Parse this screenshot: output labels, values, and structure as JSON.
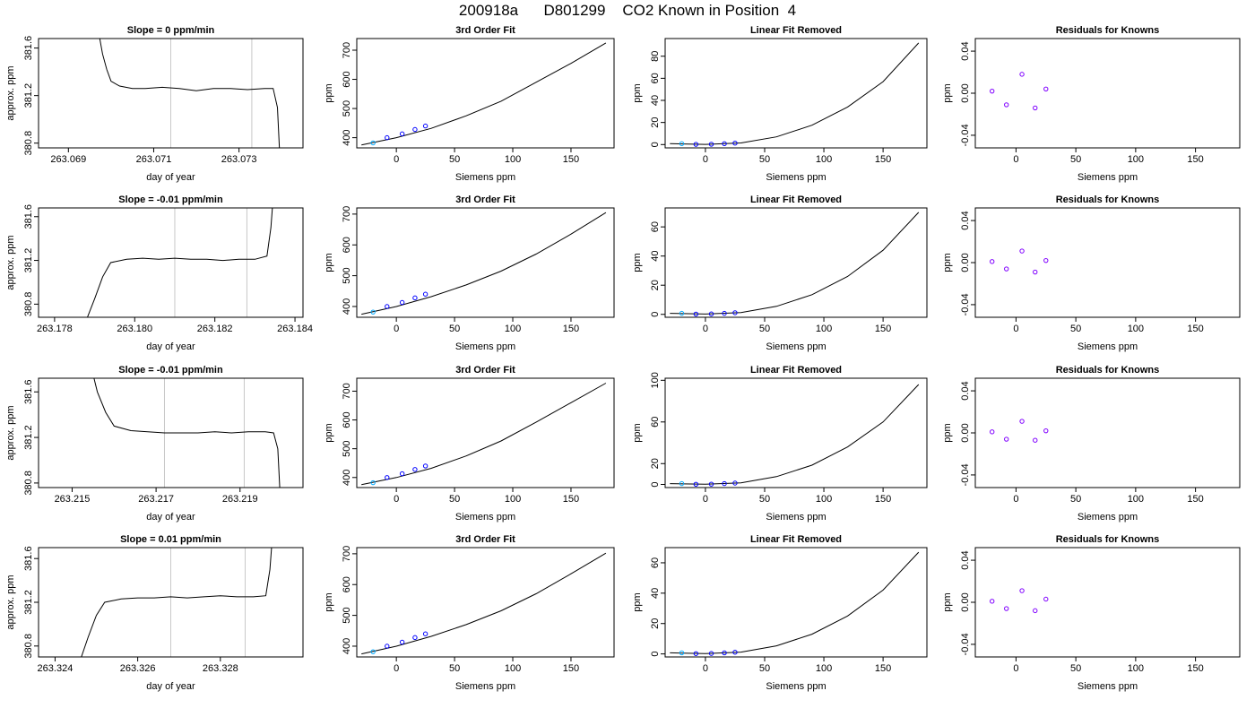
{
  "figure_title": "200918a      D801299    CO2 Known in Position  4",
  "colors": {
    "line": "#000000",
    "known_marker": "#0000ff",
    "first_marker": "#00aaff",
    "resid_marker": "#8000ff",
    "gridline": "#c8c8c8",
    "trace_highlight": "#ff0000"
  },
  "chart_data": [
    {
      "type": "line",
      "title": "Slope =  0  ppm/min",
      "xlabel": "day of year",
      "ylabel": "approx. ppm",
      "xlim": [
        263.0683,
        263.0745
      ],
      "ylim": [
        380.76,
        381.68
      ],
      "xticks": [
        263.069,
        263.071,
        263.073
      ],
      "xtick_labels": [
        "263.069",
        "263.071",
        "263.073"
      ],
      "yticks": [
        380.8,
        381.2,
        381.6
      ],
      "ytick_labels": [
        "380.8",
        "381.2",
        "381.6"
      ],
      "vlines": [
        263.0714,
        263.0733
      ],
      "x": [
        263.0697,
        263.0698,
        263.0699,
        263.07,
        263.0702,
        263.0705,
        263.0708,
        263.0712,
        263.0716,
        263.072,
        263.0724,
        263.0728,
        263.0732,
        263.0736,
        263.0738,
        263.0739,
        263.07395
      ],
      "y": [
        381.75,
        381.55,
        381.42,
        381.32,
        381.28,
        381.26,
        381.26,
        381.27,
        381.26,
        381.24,
        381.26,
        381.26,
        381.25,
        381.26,
        381.26,
        381.1,
        380.74
      ]
    },
    {
      "type": "line",
      "title": "3rd Order Fit",
      "xlabel": "Siemens ppm",
      "ylabel": "ppm",
      "xlim": [
        -34,
        187
      ],
      "ylim": [
        365,
        740
      ],
      "xticks": [
        0,
        50,
        100,
        150
      ],
      "xtick_labels": [
        "0",
        "50",
        "100",
        "150"
      ],
      "yticks": [
        400,
        500,
        600,
        700
      ],
      "ytick_labels": [
        "400",
        "500",
        "600",
        "700"
      ],
      "x": [
        -30,
        0,
        30,
        60,
        90,
        120,
        150,
        180
      ],
      "y": [
        375,
        400,
        432,
        475,
        525,
        590,
        655,
        725
      ],
      "points_x": [
        -20,
        -8,
        5,
        16,
        25
      ],
      "points_y": [
        382,
        400,
        413,
        428,
        440
      ]
    },
    {
      "type": "line",
      "title": "Linear Fit Removed",
      "xlabel": "Siemens ppm",
      "ylabel": "ppm",
      "xlim": [
        -34,
        187
      ],
      "ylim": [
        -3,
        96
      ],
      "xticks": [
        0,
        50,
        100,
        150
      ],
      "xtick_labels": [
        "0",
        "50",
        "100",
        "150"
      ],
      "yticks": [
        0,
        20,
        40,
        60,
        80
      ],
      "ytick_labels": [
        "0",
        "20",
        "40",
        "60",
        "80"
      ],
      "x": [
        -30,
        0,
        30,
        60,
        90,
        120,
        150,
        180
      ],
      "y": [
        0.8,
        0.2,
        1.5,
        7,
        17.5,
        34,
        57,
        92
      ],
      "points_x": [
        -20,
        -8,
        5,
        16,
        25
      ],
      "points_y": [
        0.8,
        0.2,
        0.3,
        0.8,
        1.3
      ]
    },
    {
      "type": "scatter",
      "title": "Residuals for Knowns",
      "xlabel": "Siemens ppm",
      "ylabel": "ppm",
      "xlim": [
        -34,
        187
      ],
      "ylim": [
        -0.052,
        0.052
      ],
      "xticks": [
        0,
        50,
        100,
        150
      ],
      "xtick_labels": [
        "0",
        "50",
        "100",
        "150"
      ],
      "yticks": [
        -0.04,
        0,
        0.04
      ],
      "ytick_labels": [
        "-0.04",
        "0.00",
        "0.04"
      ],
      "points_x": [
        -20,
        -8,
        5,
        16,
        25
      ],
      "points_y": [
        0.002,
        -0.011,
        0.018,
        -0.014,
        0.004
      ]
    },
    {
      "type": "line",
      "title": "Slope =  -0.01  ppm/min",
      "xlabel": "day of year",
      "ylabel": "approx. ppm",
      "xlim": [
        263.1776,
        263.1842
      ],
      "ylim": [
        380.68,
        381.68
      ],
      "xticks": [
        263.178,
        263.18,
        263.182,
        263.184
      ],
      "xtick_labels": [
        "263.178",
        "263.180",
        "263.182",
        "263.184"
      ],
      "yticks": [
        380.8,
        381.2,
        381.6
      ],
      "ytick_labels": [
        "380.8",
        "381.2",
        "381.6"
      ],
      "vlines": [
        263.181,
        263.1828
      ],
      "x": [
        263.1788,
        263.179,
        263.1792,
        263.1794,
        263.1798,
        263.1802,
        263.1806,
        263.181,
        263.1814,
        263.1818,
        263.1822,
        263.1826,
        263.183,
        263.1833,
        263.1834,
        263.18345
      ],
      "y": [
        380.66,
        380.85,
        381.05,
        381.18,
        381.21,
        381.22,
        381.21,
        381.22,
        381.21,
        381.21,
        381.2,
        381.21,
        381.21,
        381.24,
        381.5,
        381.75
      ]
    },
    {
      "type": "line",
      "title": "3rd Order Fit",
      "xlabel": "Siemens ppm",
      "ylabel": "ppm",
      "xlim": [
        -34,
        187
      ],
      "ylim": [
        365,
        720
      ],
      "xticks": [
        0,
        50,
        100,
        150
      ],
      "xtick_labels": [
        "0",
        "50",
        "100",
        "150"
      ],
      "yticks": [
        400,
        500,
        600,
        700
      ],
      "ytick_labels": [
        "400",
        "500",
        "600",
        "700"
      ],
      "x": [
        -30,
        0,
        30,
        60,
        90,
        120,
        150,
        180
      ],
      "y": [
        375,
        400,
        432,
        470,
        515,
        570,
        635,
        705
      ],
      "points_x": [
        -20,
        -8,
        5,
        16,
        25
      ],
      "points_y": [
        382,
        400,
        413,
        428,
        440
      ]
    },
    {
      "type": "line",
      "title": "Linear Fit Removed",
      "xlabel": "Siemens ppm",
      "ylabel": "ppm",
      "xlim": [
        -34,
        187
      ],
      "ylim": [
        -2,
        73
      ],
      "xticks": [
        0,
        50,
        100,
        150
      ],
      "xtick_labels": [
        "0",
        "50",
        "100",
        "150"
      ],
      "yticks": [
        0,
        20,
        40,
        60
      ],
      "ytick_labels": [
        "0",
        "20",
        "40",
        "60"
      ],
      "x": [
        -30,
        0,
        30,
        60,
        90,
        120,
        150,
        180
      ],
      "y": [
        0.7,
        0.2,
        1.2,
        5.5,
        13.5,
        26,
        44,
        70
      ],
      "points_x": [
        -20,
        -8,
        5,
        16,
        25
      ],
      "points_y": [
        0.7,
        0.2,
        0.3,
        0.7,
        1.1
      ]
    },
    {
      "type": "scatter",
      "title": "Residuals for Knowns",
      "xlabel": "Siemens ppm",
      "ylabel": "ppm",
      "xlim": [
        -34,
        187
      ],
      "ylim": [
        -0.052,
        0.052
      ],
      "xticks": [
        0,
        50,
        100,
        150
      ],
      "xtick_labels": [
        "0",
        "50",
        "100",
        "150"
      ],
      "yticks": [
        -0.04,
        0,
        0.04
      ],
      "ytick_labels": [
        "-0.04",
        "0.00",
        "0.04"
      ],
      "points_x": [
        -20,
        -8,
        5,
        16,
        25
      ],
      "points_y": [
        0.001,
        -0.006,
        0.011,
        -0.009,
        0.002
      ]
    },
    {
      "type": "line",
      "title": "Slope =  -0.01  ppm/min",
      "xlabel": "day of year",
      "ylabel": "approx. ppm",
      "xlim": [
        263.2142,
        263.2205
      ],
      "ylim": [
        380.76,
        381.72
      ],
      "xticks": [
        263.215,
        263.217,
        263.219
      ],
      "xtick_labels": [
        "263.215",
        "263.217",
        "263.219"
      ],
      "yticks": [
        380.8,
        381.2,
        381.6
      ],
      "ytick_labels": [
        "380.8",
        "381.2",
        "381.6"
      ],
      "vlines": [
        263.2172,
        263.2191
      ],
      "x": [
        263.2155,
        263.2156,
        263.2158,
        263.216,
        263.2164,
        263.2168,
        263.2172,
        263.2176,
        263.218,
        263.2184,
        263.2188,
        263.2192,
        263.2196,
        263.2198,
        263.2199,
        263.21995
      ],
      "y": [
        381.75,
        381.6,
        381.42,
        381.3,
        381.26,
        381.25,
        381.24,
        381.24,
        381.24,
        381.25,
        381.24,
        381.25,
        381.25,
        381.24,
        381.1,
        380.74
      ]
    },
    {
      "type": "line",
      "title": "3rd Order Fit",
      "xlabel": "Siemens ppm",
      "ylabel": "ppm",
      "xlim": [
        -34,
        187
      ],
      "ylim": [
        365,
        745
      ],
      "xticks": [
        0,
        50,
        100,
        150
      ],
      "xtick_labels": [
        "0",
        "50",
        "100",
        "150"
      ],
      "yticks": [
        400,
        500,
        600,
        700
      ],
      "ytick_labels": [
        "400",
        "500",
        "600",
        "700"
      ],
      "x": [
        -30,
        0,
        30,
        60,
        90,
        120,
        150,
        180
      ],
      "y": [
        375,
        400,
        432,
        475,
        527,
        592,
        660,
        728
      ],
      "points_x": [
        -20,
        -8,
        5,
        16,
        25
      ],
      "points_y": [
        382,
        400,
        413,
        428,
        440
      ]
    },
    {
      "type": "line",
      "title": "Linear Fit Removed",
      "xlabel": "Siemens ppm",
      "ylabel": "ppm",
      "xlim": [
        -34,
        187
      ],
      "ylim": [
        -3,
        102
      ],
      "xticks": [
        0,
        50,
        100,
        150
      ],
      "xtick_labels": [
        "0",
        "50",
        "100",
        "150"
      ],
      "yticks": [
        0,
        20,
        60,
        100
      ],
      "ytick_labels": [
        "0",
        "20",
        "60",
        "100"
      ],
      "x": [
        -30,
        0,
        30,
        60,
        90,
        120,
        150,
        180
      ],
      "y": [
        0.8,
        0.2,
        1.5,
        7.5,
        18.5,
        36,
        60,
        96
      ],
      "points_x": [
        -20,
        -8,
        5,
        16,
        25
      ],
      "points_y": [
        0.8,
        0.2,
        0.3,
        0.8,
        1.3
      ]
    },
    {
      "type": "scatter",
      "title": "Residuals for Knowns",
      "xlabel": "Siemens ppm",
      "ylabel": "ppm",
      "xlim": [
        -34,
        187
      ],
      "ylim": [
        -0.052,
        0.052
      ],
      "xticks": [
        0,
        50,
        100,
        150
      ],
      "xtick_labels": [
        "0",
        "50",
        "100",
        "150"
      ],
      "yticks": [
        -0.04,
        0,
        0.04
      ],
      "ytick_labels": [
        "-0.04",
        "0.00",
        "0.04"
      ],
      "points_x": [
        -20,
        -8,
        5,
        16,
        25
      ],
      "points_y": [
        0.001,
        -0.006,
        0.011,
        -0.007,
        0.002
      ]
    },
    {
      "type": "line",
      "title": "Slope =  0.01  ppm/min",
      "xlabel": "day of year",
      "ylabel": "approx. ppm",
      "xlim": [
        263.3236,
        263.33
      ],
      "ylim": [
        380.7,
        381.7
      ],
      "xticks": [
        263.324,
        263.326,
        263.328
      ],
      "xtick_labels": [
        "263.324",
        "263.326",
        "263.328"
      ],
      "yticks": [
        380.8,
        381.2,
        381.6
      ],
      "ytick_labels": [
        "380.8",
        "381.2",
        "381.6"
      ],
      "vlines": [
        263.3268,
        263.3286
      ],
      "x": [
        263.3246,
        263.3248,
        263.325,
        263.3252,
        263.3256,
        263.326,
        263.3264,
        263.3268,
        263.3272,
        263.3276,
        263.328,
        263.3284,
        263.3288,
        263.3291,
        263.3292,
        263.32925
      ],
      "y": [
        380.66,
        380.88,
        381.08,
        381.2,
        381.23,
        381.24,
        381.24,
        381.25,
        381.24,
        381.25,
        381.26,
        381.25,
        381.25,
        381.26,
        381.5,
        381.75
      ]
    },
    {
      "type": "line",
      "title": "3rd Order Fit",
      "xlabel": "Siemens ppm",
      "ylabel": "ppm",
      "xlim": [
        -34,
        187
      ],
      "ylim": [
        365,
        720
      ],
      "xticks": [
        0,
        50,
        100,
        150
      ],
      "xtick_labels": [
        "0",
        "50",
        "100",
        "150"
      ],
      "yticks": [
        400,
        500,
        600,
        700
      ],
      "ytick_labels": [
        "400",
        "500",
        "600",
        "700"
      ],
      "x": [
        -30,
        0,
        30,
        60,
        90,
        120,
        150,
        180
      ],
      "y": [
        375,
        400,
        432,
        470,
        515,
        570,
        635,
        702
      ],
      "points_x": [
        -20,
        -8,
        5,
        16,
        25
      ],
      "points_y": [
        382,
        400,
        413,
        428,
        440
      ]
    },
    {
      "type": "line",
      "title": "Linear Fit Removed",
      "xlabel": "Siemens ppm",
      "ylabel": "ppm",
      "xlim": [
        -34,
        187
      ],
      "ylim": [
        -2,
        70
      ],
      "xticks": [
        0,
        50,
        100,
        150
      ],
      "xtick_labels": [
        "0",
        "50",
        "100",
        "150"
      ],
      "yticks": [
        0,
        20,
        40,
        60
      ],
      "ytick_labels": [
        "0",
        "20",
        "40",
        "60"
      ],
      "x": [
        -30,
        0,
        30,
        60,
        90,
        120,
        150,
        180
      ],
      "y": [
        0.7,
        0.2,
        1.2,
        5.3,
        13,
        25,
        42,
        67
      ],
      "points_x": [
        -20,
        -8,
        5,
        16,
        25
      ],
      "points_y": [
        0.7,
        0.2,
        0.3,
        0.7,
        1.1
      ]
    },
    {
      "type": "scatter",
      "title": "Residuals for Knowns",
      "xlabel": "Siemens ppm",
      "ylabel": "ppm",
      "xlim": [
        -34,
        187
      ],
      "ylim": [
        -0.052,
        0.052
      ],
      "xticks": [
        0,
        50,
        100,
        150
      ],
      "xtick_labels": [
        "0",
        "50",
        "100",
        "150"
      ],
      "yticks": [
        -0.04,
        0,
        0.04
      ],
      "ytick_labels": [
        "-0.04",
        "0.00",
        "0.04"
      ],
      "points_x": [
        -20,
        -8,
        5,
        16,
        25
      ],
      "points_y": [
        0.001,
        -0.006,
        0.011,
        -0.008,
        0.003
      ]
    }
  ]
}
